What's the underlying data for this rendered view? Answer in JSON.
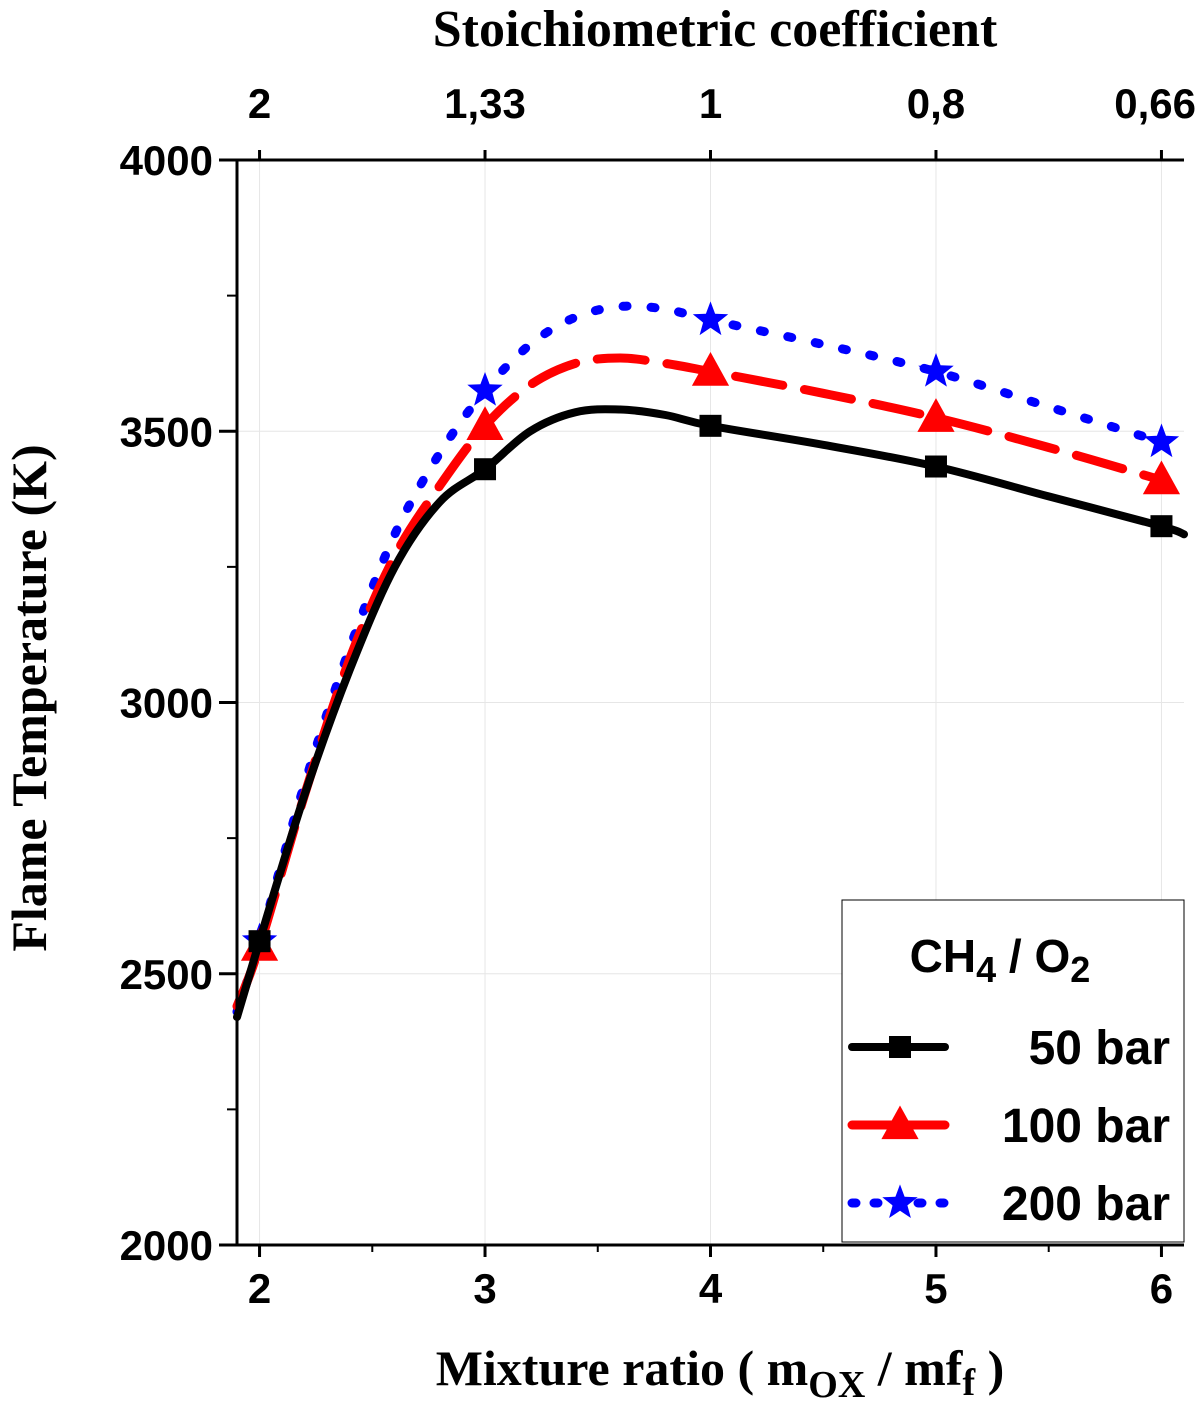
{
  "chart_data": {
    "type": "line",
    "title": "",
    "xlabel": "Mixture ratio ( m",
    "xlabel_sub1": "OX",
    "xlabel_mid": " / mf",
    "xlabel_end": " )",
    "ylabel": "Flame Temperature (K)",
    "top_axis_label": "Stoichiometric coefficient",
    "xlim": [
      1.9,
      6.1
    ],
    "ylim": [
      2000,
      4000
    ],
    "x_ticks": [
      "2",
      "3",
      "4",
      "5",
      "6"
    ],
    "y_ticks": [
      "2000",
      "2500",
      "3000",
      "3500",
      "4000"
    ],
    "top_ticks": [
      {
        "x": 2,
        "label": "2"
      },
      {
        "x": 3,
        "label": "1,33"
      },
      {
        "x": 4,
        "label": "1"
      },
      {
        "x": 5,
        "label": "0,8"
      },
      {
        "x": 6,
        "label": "0,66"
      }
    ],
    "grid": true,
    "legend_position": "bottom-right",
    "legend_title_main": "CH",
    "legend_title_sub1": "4",
    "legend_title_mid": " / O",
    "legend_title_sub2": "2",
    "series": [
      {
        "name": "50 bar",
        "color": "#000000",
        "marker": "square",
        "line_style": "solid",
        "x": [
          1.9,
          2,
          2.2,
          2.4,
          2.6,
          2.8,
          3,
          3.2,
          3.4,
          3.6,
          3.8,
          4,
          4.5,
          5,
          5.5,
          6,
          6.1
        ],
        "y": [
          2420,
          2560,
          2830,
          3060,
          3250,
          3370,
          3430,
          3500,
          3535,
          3540,
          3530,
          3510,
          3475,
          3435,
          3380,
          3325,
          3310
        ],
        "marker_x": [
          2,
          3,
          4,
          5,
          6
        ],
        "marker_y": [
          2560,
          3430,
          3510,
          3435,
          3325
        ]
      },
      {
        "name": "100 bar",
        "color": "#ff0000",
        "marker": "triangle",
        "line_style": "dashed",
        "x": [
          1.9,
          2,
          2.2,
          2.4,
          2.6,
          2.8,
          3,
          3.2,
          3.4,
          3.6,
          3.8,
          4,
          4.5,
          5,
          5.5,
          6
        ],
        "y": [
          2440,
          2550,
          2830,
          3080,
          3270,
          3400,
          3510,
          3585,
          3625,
          3635,
          3625,
          3610,
          3570,
          3525,
          3470,
          3410
        ],
        "marker_x": [
          2,
          3,
          4,
          5,
          6
        ],
        "marker_y": [
          2550,
          3510,
          3610,
          3525,
          3410
        ]
      },
      {
        "name": "200 bar",
        "color": "#0000ff",
        "marker": "star",
        "line_style": "dotted",
        "x": [
          1.9,
          2,
          2.2,
          2.4,
          2.6,
          2.8,
          3,
          3.2,
          3.4,
          3.6,
          3.8,
          4,
          4.5,
          5,
          5.5,
          6
        ],
        "y": [
          2430,
          2560,
          2850,
          3100,
          3310,
          3460,
          3575,
          3660,
          3710,
          3730,
          3725,
          3705,
          3660,
          3610,
          3545,
          3480
        ],
        "marker_x": [
          2,
          3,
          4,
          5,
          6
        ],
        "marker_y": [
          2560,
          3575,
          3705,
          3610,
          3480
        ]
      }
    ]
  }
}
